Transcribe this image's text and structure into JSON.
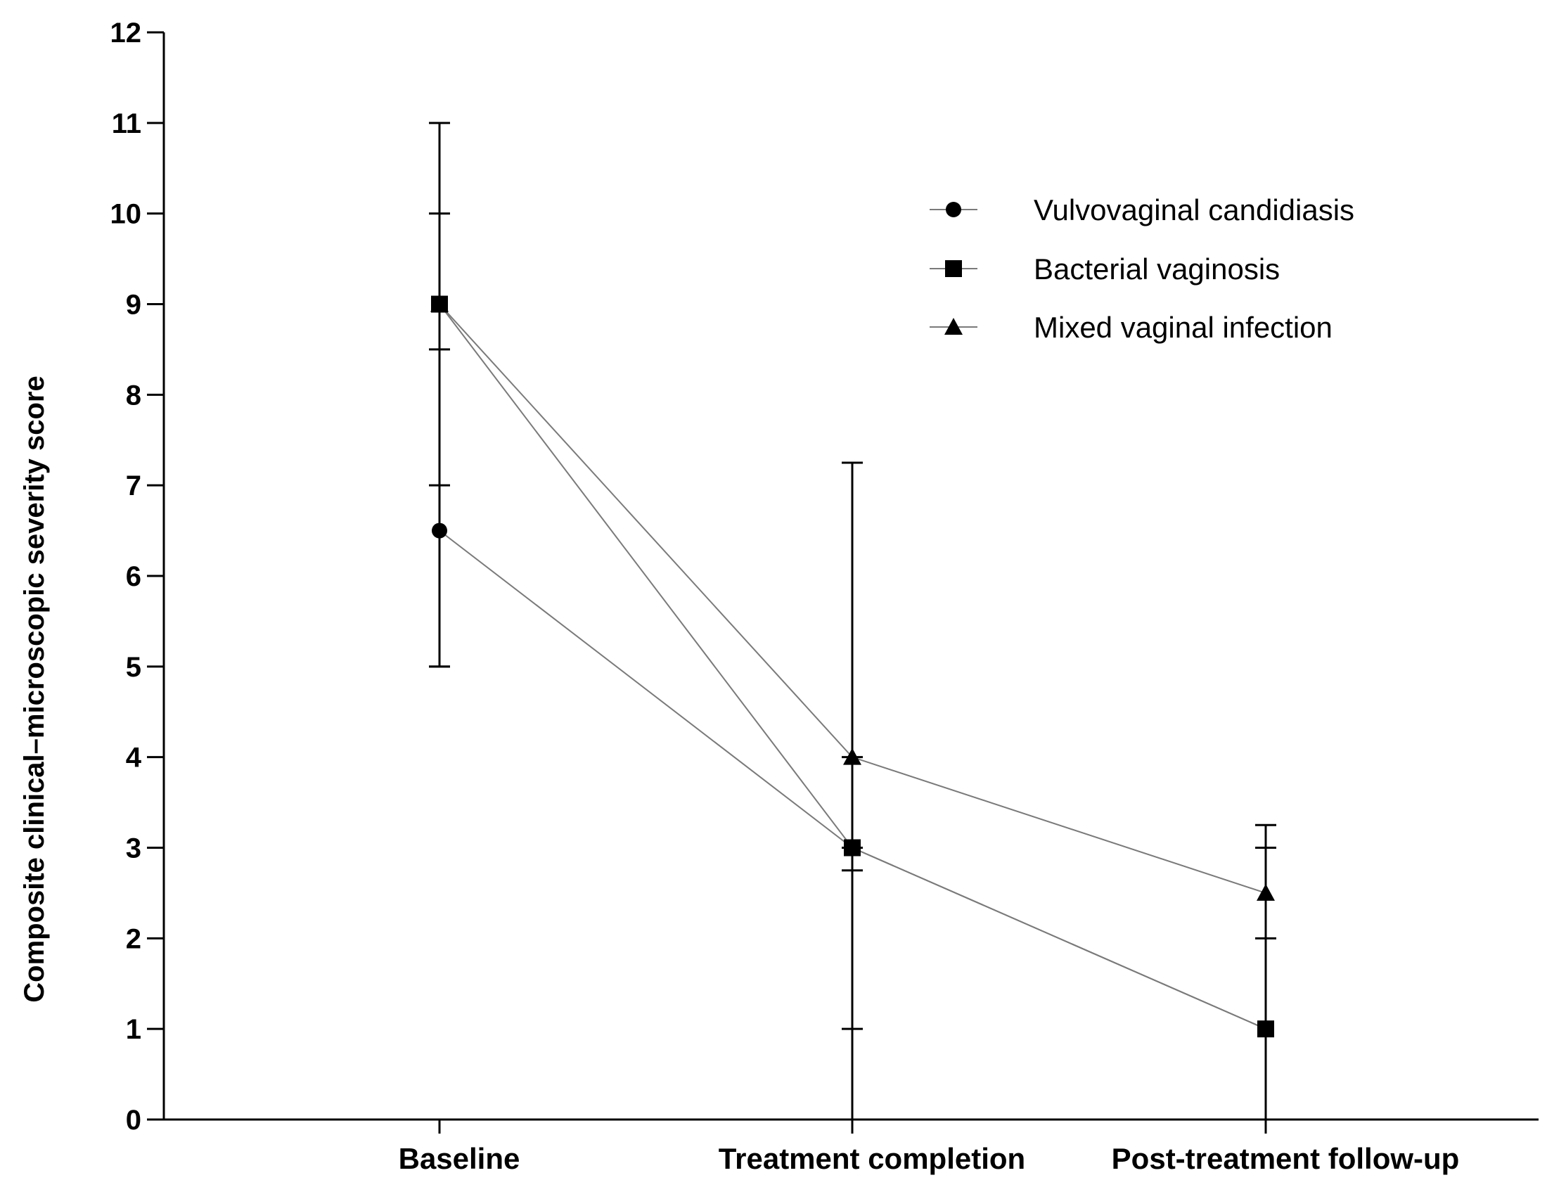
{
  "chart_data": {
    "type": "line",
    "title": "",
    "xlabel": "",
    "ylabel": "Composite clinical–microscopic severity score",
    "categories": [
      "Baseline",
      "Treatment completion",
      "Post-treatment follow-up"
    ],
    "ylim": [
      0,
      12
    ],
    "yticks": [
      0,
      1,
      2,
      3,
      4,
      5,
      6,
      7,
      8,
      9,
      10,
      11,
      12
    ],
    "grid": false,
    "legend_position": "top-right",
    "series": [
      {
        "name": "Vulvovaginal candidiasis",
        "marker": "circle",
        "values": [
          6.5,
          3,
          1
        ],
        "error_low": [
          5,
          1,
          0
        ],
        "error_high": [
          7,
          3,
          2
        ]
      },
      {
        "name": "Bacterial vaginosis",
        "marker": "square",
        "values": [
          9,
          3,
          1
        ],
        "error_low": [
          8.5,
          2.75,
          0
        ],
        "error_high": [
          10,
          4,
          3
        ]
      },
      {
        "name": "Mixed vaginal infection",
        "marker": "triangle",
        "values": [
          9,
          4,
          2.5
        ],
        "error_low": [
          5,
          0,
          0
        ],
        "error_high": [
          11,
          7.25,
          3.25
        ]
      }
    ]
  }
}
